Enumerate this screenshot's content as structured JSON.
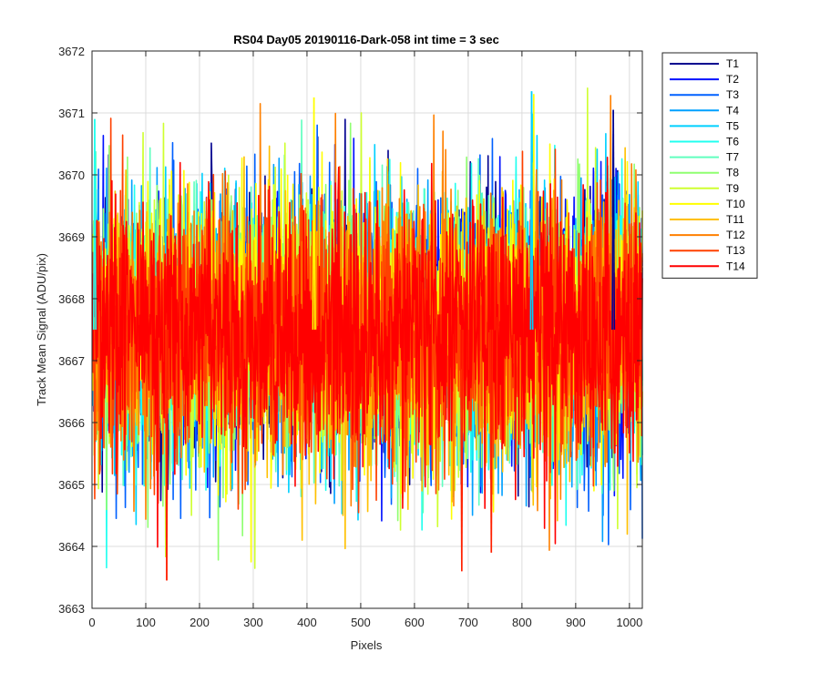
{
  "chart_data": {
    "type": "line",
    "title": "RS04 Day05 20190116-Dark-058 int time = 3 sec",
    "xlabel": "Pixels",
    "ylabel": "Track Mean Signal (ADU/pix)",
    "xlim": [
      0,
      1024
    ],
    "ylim": [
      3663,
      3672
    ],
    "xticks": [
      0,
      100,
      200,
      300,
      400,
      500,
      600,
      700,
      800,
      900,
      1000
    ],
    "yticks": [
      3663,
      3664,
      3665,
      3666,
      3667,
      3668,
      3669,
      3670,
      3671,
      3672
    ],
    "grid": true,
    "legend_position": "outside-top-right",
    "x": {
      "start": 1,
      "end": 1024,
      "step": 1
    },
    "noise_model": {
      "mean": 3667.5,
      "std": 1.05,
      "distribution": "approximately normal"
    },
    "extremes": [
      {
        "x": 139,
        "y": 3663.45
      },
      {
        "x": 688,
        "y": 3663.6
      },
      {
        "x": 743,
        "y": 3663.9
      },
      {
        "x": 818,
        "y": 3671.35
      },
      {
        "x": 413,
        "y": 3671.25
      },
      {
        "x": 970,
        "y": 3671.05
      },
      {
        "x": 5,
        "y": 3670.9
      }
    ],
    "series": [
      {
        "name": "T1",
        "color": "#00008F"
      },
      {
        "name": "T2",
        "color": "#0010FF"
      },
      {
        "name": "T3",
        "color": "#0060FF"
      },
      {
        "name": "T4",
        "color": "#00A0FF"
      },
      {
        "name": "T5",
        "color": "#00D0FF"
      },
      {
        "name": "T6",
        "color": "#20FFEF"
      },
      {
        "name": "T7",
        "color": "#60FFBF"
      },
      {
        "name": "T8",
        "color": "#8FFF70"
      },
      {
        "name": "T9",
        "color": "#CFFF30"
      },
      {
        "name": "T10",
        "color": "#FFFF00"
      },
      {
        "name": "T11",
        "color": "#FFC000"
      },
      {
        "name": "T12",
        "color": "#FF8000"
      },
      {
        "name": "T13",
        "color": "#FF4000"
      },
      {
        "name": "T14",
        "color": "#FF0000"
      }
    ]
  }
}
